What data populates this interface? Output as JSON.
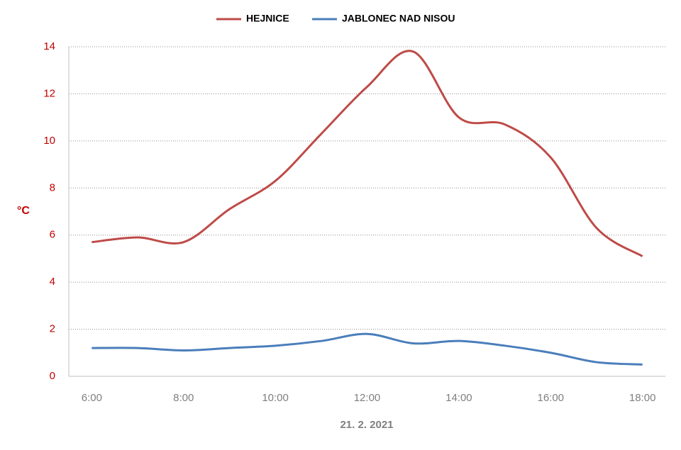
{
  "chart_data": {
    "type": "line",
    "x_label": "21. 2. 2021",
    "y_label": "°C",
    "categories": [
      "6:00",
      null,
      "8:00",
      null,
      "10:00",
      null,
      "12:00",
      null,
      "14:00",
      null,
      "16:00",
      null,
      "18:00"
    ],
    "series": [
      {
        "name": "HEJNICE",
        "color": "#be4b48",
        "values": [
          5.7,
          5.9,
          5.7,
          7.1,
          8.3,
          10.3,
          12.3,
          13.8,
          11.0,
          10.7,
          9.3,
          6.3,
          5.1
        ]
      },
      {
        "name": "JABLONEC NAD NISOU",
        "color": "#4a7ebb",
        "values": [
          1.2,
          1.2,
          1.1,
          1.2,
          1.3,
          1.5,
          1.8,
          1.4,
          1.5,
          1.3,
          1.0,
          0.6,
          0.5
        ]
      }
    ],
    "ylim": [
      0,
      14
    ],
    "yticks": [
      0,
      2,
      4,
      6,
      8,
      10,
      12,
      14
    ],
    "grid": true,
    "legend": "top"
  }
}
